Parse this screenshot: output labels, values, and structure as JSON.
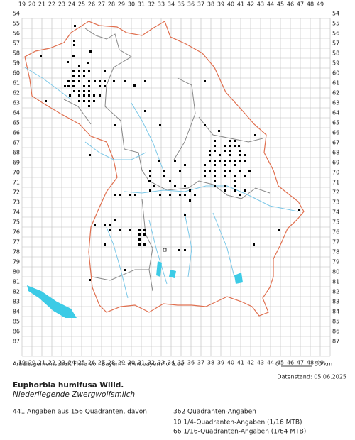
{
  "map": {
    "x_labels": [
      "19",
      "20",
      "21",
      "22",
      "23",
      "24",
      "25",
      "26",
      "27",
      "28",
      "29",
      "30",
      "31",
      "32",
      "33",
      "34",
      "35",
      "36",
      "37",
      "38",
      "39",
      "40",
      "41",
      "42",
      "43",
      "44",
      "45",
      "46",
      "47",
      "48",
      "49"
    ],
    "y_labels": [
      "54",
      "55",
      "56",
      "57",
      "58",
      "59",
      "60",
      "61",
      "62",
      "63",
      "64",
      "65",
      "66",
      "67",
      "68",
      "69",
      "70",
      "71",
      "72",
      "73",
      "74",
      "75",
      "76",
      "77",
      "78",
      "79",
      "80",
      "81",
      "82",
      "83",
      "84",
      "85",
      "86",
      "87"
    ],
    "source": "Arbeitsgemeinschaft Flora von Bayern - www.bayernflora.de",
    "scale_start": "0",
    "scale_end": "50 km"
  },
  "footer": {
    "date": "Datenstand: 05.06.2025",
    "title": "Euphorbia humifusa Willd.",
    "subtitle": "Niederliegende Zwergwolfsmilch",
    "stats": "441 Angaben aus 156 Quadranten, davon:",
    "breakdown": [
      "362 Quadranten-Angaben",
      "10 1/4-Quadranten-Angaben (1/16 MTB)",
      "66 1/16-Quadranten-Angaben (1/64 MTB)"
    ]
  }
}
